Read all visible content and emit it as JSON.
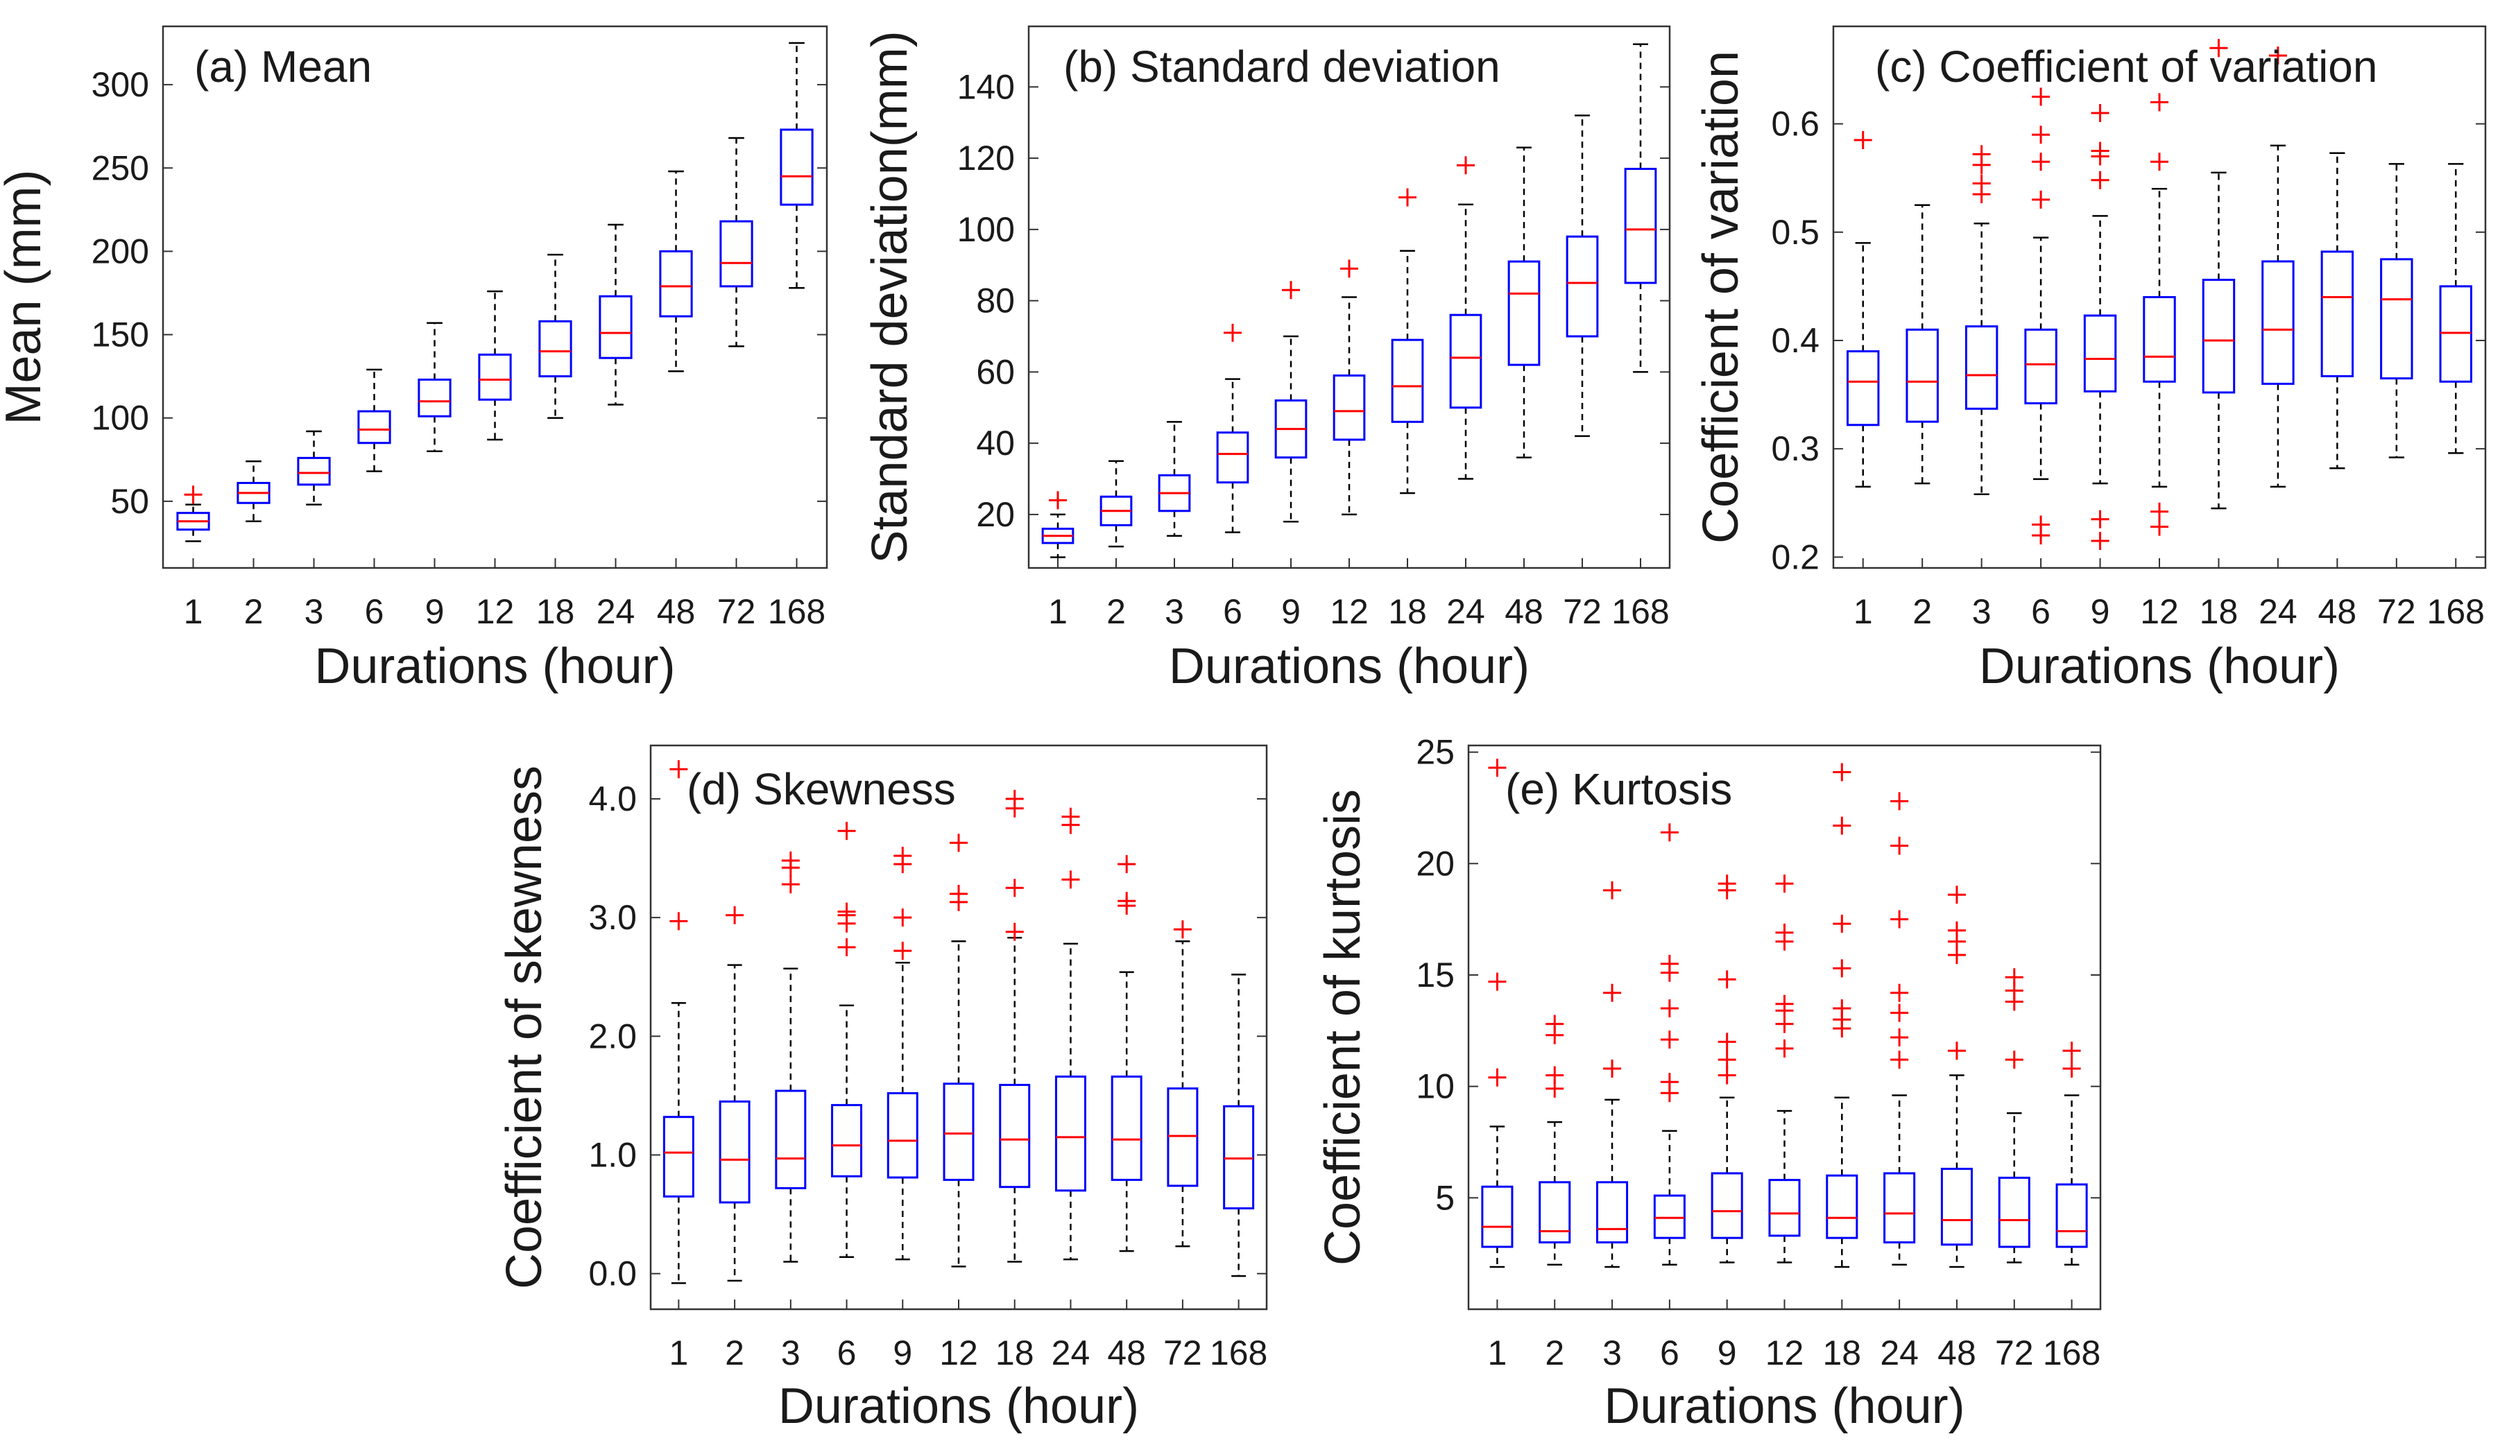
{
  "figure": {
    "caption_hint": "Boxplots of rainfall statistics by duration"
  },
  "colors": {
    "box": "#0000ff",
    "median": "#ff0000",
    "outlier": "#ff0000",
    "whisker": "#000000"
  },
  "chart_data": [
    {
      "id": "a",
      "type": "box",
      "title": "(a) Mean",
      "xlabel": "Durations (hour)",
      "ylabel": "Mean (mm)",
      "categories": [
        "1",
        "2",
        "3",
        "6",
        "9",
        "12",
        "18",
        "24",
        "48",
        "72",
        "168"
      ],
      "ylim": [
        10,
        335
      ],
      "yticks": [
        50,
        100,
        150,
        200,
        250,
        300
      ],
      "ytick_labels": [
        "50",
        "100",
        "150",
        "200",
        "250",
        "300"
      ],
      "boxes": [
        {
          "min": 26,
          "q1": 33,
          "median": 38,
          "q3": 43,
          "max": 48,
          "outliers": [
            54
          ]
        },
        {
          "min": 38,
          "q1": 49,
          "median": 55,
          "q3": 61,
          "max": 74,
          "outliers": []
        },
        {
          "min": 48,
          "q1": 60,
          "median": 67,
          "q3": 76,
          "max": 92,
          "outliers": []
        },
        {
          "min": 68,
          "q1": 85,
          "median": 93,
          "q3": 104,
          "max": 129,
          "outliers": []
        },
        {
          "min": 80,
          "q1": 101,
          "median": 110,
          "q3": 123,
          "max": 157,
          "outliers": []
        },
        {
          "min": 87,
          "q1": 111,
          "median": 123,
          "q3": 138,
          "max": 176,
          "outliers": []
        },
        {
          "min": 100,
          "q1": 125,
          "median": 140,
          "q3": 158,
          "max": 198,
          "outliers": []
        },
        {
          "min": 108,
          "q1": 136,
          "median": 151,
          "q3": 173,
          "max": 216,
          "outliers": []
        },
        {
          "min": 128,
          "q1": 161,
          "median": 179,
          "q3": 200,
          "max": 248,
          "outliers": []
        },
        {
          "min": 143,
          "q1": 179,
          "median": 193,
          "q3": 218,
          "max": 268,
          "outliers": []
        },
        {
          "min": 178,
          "q1": 228,
          "median": 245,
          "q3": 273,
          "max": 325,
          "outliers": []
        }
      ]
    },
    {
      "id": "b",
      "type": "box",
      "title": "(b) Standard deviation",
      "xlabel": "Durations (hour)",
      "ylabel": "Standard deviation(mm)",
      "categories": [
        "1",
        "2",
        "3",
        "6",
        "9",
        "12",
        "18",
        "24",
        "48",
        "72",
        "168"
      ],
      "ylim": [
        5,
        157
      ],
      "yticks": [
        20,
        40,
        60,
        80,
        100,
        120,
        140
      ],
      "ytick_labels": [
        "20",
        "40",
        "60",
        "80",
        "100",
        "120",
        "140"
      ],
      "boxes": [
        {
          "min": 8,
          "q1": 12,
          "median": 14,
          "q3": 16,
          "max": 20,
          "outliers": [
            24
          ]
        },
        {
          "min": 11,
          "q1": 17,
          "median": 21,
          "q3": 25,
          "max": 35,
          "outliers": []
        },
        {
          "min": 14,
          "q1": 21,
          "median": 26,
          "q3": 31,
          "max": 46,
          "outliers": []
        },
        {
          "min": 15,
          "q1": 29,
          "median": 37,
          "q3": 43,
          "max": 58,
          "outliers": [
            71
          ]
        },
        {
          "min": 18,
          "q1": 36,
          "median": 44,
          "q3": 52,
          "max": 70,
          "outliers": [
            83
          ]
        },
        {
          "min": 20,
          "q1": 41,
          "median": 49,
          "q3": 59,
          "max": 81,
          "outliers": [
            89
          ]
        },
        {
          "min": 26,
          "q1": 46,
          "median": 56,
          "q3": 69,
          "max": 94,
          "outliers": [
            109
          ]
        },
        {
          "min": 30,
          "q1": 50,
          "median": 64,
          "q3": 76,
          "max": 107,
          "outliers": [
            118
          ]
        },
        {
          "min": 36,
          "q1": 62,
          "median": 82,
          "q3": 91,
          "max": 123,
          "outliers": []
        },
        {
          "min": 42,
          "q1": 70,
          "median": 85,
          "q3": 98,
          "max": 132,
          "outliers": []
        },
        {
          "min": 60,
          "q1": 85,
          "median": 100,
          "q3": 117,
          "max": 152,
          "outliers": []
        }
      ]
    },
    {
      "id": "c",
      "type": "box",
      "title": "(c) Coefficient of variation",
      "xlabel": "Durations (hour)",
      "ylabel": "Coefficient of variation",
      "categories": [
        "1",
        "2",
        "3",
        "6",
        "9",
        "12",
        "18",
        "24",
        "48",
        "72",
        "168"
      ],
      "ylim": [
        0.19,
        0.69
      ],
      "yticks": [
        0.2,
        0.3,
        0.4,
        0.5,
        0.6
      ],
      "ytick_labels": [
        "0.2",
        "0.3",
        "0.4",
        "0.5",
        "0.6"
      ],
      "boxes": [
        {
          "min": 0.265,
          "q1": 0.322,
          "median": 0.362,
          "q3": 0.39,
          "max": 0.49,
          "outliers": [
            0.585
          ]
        },
        {
          "min": 0.268,
          "q1": 0.325,
          "median": 0.362,
          "q3": 0.41,
          "max": 0.525,
          "outliers": []
        },
        {
          "min": 0.258,
          "q1": 0.337,
          "median": 0.368,
          "q3": 0.413,
          "max": 0.508,
          "outliers": [
            0.535,
            0.545,
            0.562,
            0.572
          ]
        },
        {
          "min": 0.272,
          "q1": 0.342,
          "median": 0.378,
          "q3": 0.41,
          "max": 0.495,
          "outliers": [
            0.53,
            0.565,
            0.59,
            0.625,
            0.23,
            0.22
          ]
        },
        {
          "min": 0.268,
          "q1": 0.353,
          "median": 0.383,
          "q3": 0.423,
          "max": 0.515,
          "outliers": [
            0.548,
            0.57,
            0.575,
            0.61,
            0.235,
            0.215
          ]
        },
        {
          "min": 0.265,
          "q1": 0.362,
          "median": 0.385,
          "q3": 0.44,
          "max": 0.54,
          "outliers": [
            0.565,
            0.62,
            0.242,
            0.228
          ]
        },
        {
          "min": 0.245,
          "q1": 0.352,
          "median": 0.4,
          "q3": 0.456,
          "max": 0.555,
          "outliers": [
            0.67
          ]
        },
        {
          "min": 0.265,
          "q1": 0.36,
          "median": 0.41,
          "q3": 0.473,
          "max": 0.58,
          "outliers": [
            0.663
          ]
        },
        {
          "min": 0.282,
          "q1": 0.367,
          "median": 0.44,
          "q3": 0.482,
          "max": 0.573,
          "outliers": []
        },
        {
          "min": 0.292,
          "q1": 0.365,
          "median": 0.438,
          "q3": 0.475,
          "max": 0.563,
          "outliers": []
        },
        {
          "min": 0.296,
          "q1": 0.362,
          "median": 0.407,
          "q3": 0.45,
          "max": 0.563,
          "outliers": []
        }
      ]
    },
    {
      "id": "d",
      "type": "box",
      "title": "(d) Skewness",
      "xlabel": "Durations (hour)",
      "ylabel": "Coefficient of skewness",
      "categories": [
        "1",
        "2",
        "3",
        "6",
        "9",
        "12",
        "18",
        "24",
        "48",
        "72",
        "168"
      ],
      "ylim": [
        -0.3,
        4.45
      ],
      "yticks": [
        0.0,
        1.0,
        2.0,
        3.0,
        4.0
      ],
      "ytick_labels": [
        "0.0",
        "1.0",
        "2.0",
        "3.0",
        "4.0"
      ],
      "boxes": [
        {
          "min": -0.08,
          "q1": 0.65,
          "median": 1.02,
          "q3": 1.32,
          "max": 2.28,
          "outliers": [
            2.97,
            4.25
          ]
        },
        {
          "min": -0.06,
          "q1": 0.6,
          "median": 0.96,
          "q3": 1.45,
          "max": 2.6,
          "outliers": [
            3.02
          ]
        },
        {
          "min": 0.1,
          "q1": 0.72,
          "median": 0.97,
          "q3": 1.54,
          "max": 2.57,
          "outliers": [
            3.28,
            3.42,
            3.48
          ]
        },
        {
          "min": 0.14,
          "q1": 0.82,
          "median": 1.08,
          "q3": 1.42,
          "max": 2.26,
          "outliers": [
            2.75,
            2.95,
            3.02,
            3.05,
            3.73
          ]
        },
        {
          "min": 0.12,
          "q1": 0.81,
          "median": 1.12,
          "q3": 1.52,
          "max": 2.62,
          "outliers": [
            2.72,
            3.0,
            3.45,
            3.52
          ]
        },
        {
          "min": 0.06,
          "q1": 0.79,
          "median": 1.18,
          "q3": 1.6,
          "max": 2.8,
          "outliers": [
            3.13,
            3.2,
            3.63
          ]
        },
        {
          "min": 0.1,
          "q1": 0.73,
          "median": 1.13,
          "q3": 1.59,
          "max": 2.83,
          "outliers": [
            2.88,
            3.25,
            3.92,
            4.0
          ]
        },
        {
          "min": 0.12,
          "q1": 0.7,
          "median": 1.15,
          "q3": 1.66,
          "max": 2.78,
          "outliers": [
            3.32,
            3.78,
            3.85
          ]
        },
        {
          "min": 0.19,
          "q1": 0.79,
          "median": 1.13,
          "q3": 1.66,
          "max": 2.54,
          "outliers": [
            3.1,
            3.14,
            3.45
          ]
        },
        {
          "min": 0.23,
          "q1": 0.74,
          "median": 1.16,
          "q3": 1.56,
          "max": 2.8,
          "outliers": [
            2.9
          ]
        },
        {
          "min": -0.02,
          "q1": 0.55,
          "median": 0.97,
          "q3": 1.41,
          "max": 2.52,
          "outliers": []
        }
      ]
    },
    {
      "id": "e",
      "type": "box",
      "title": "(e) Kurtosis",
      "xlabel": "Durations (hour)",
      "ylabel": "Coefficient of kurtosis",
      "categories": [
        "1",
        "2",
        "3",
        "6",
        "9",
        "12",
        "18",
        "24",
        "48",
        "72",
        "168"
      ],
      "ylim": [
        0,
        25.3
      ],
      "yticks": [
        5,
        10,
        15,
        20,
        25
      ],
      "ytick_labels": [
        "5",
        "10",
        "15",
        "20",
        "25"
      ],
      "boxes": [
        {
          "min": 1.9,
          "q1": 2.8,
          "median": 3.7,
          "q3": 5.5,
          "max": 8.2,
          "outliers": [
            10.4,
            14.7,
            24.3
          ]
        },
        {
          "min": 2.0,
          "q1": 3.0,
          "median": 3.5,
          "q3": 5.7,
          "max": 8.4,
          "outliers": [
            9.9,
            10.5,
            12.3,
            12.8
          ]
        },
        {
          "min": 1.9,
          "q1": 3.0,
          "median": 3.6,
          "q3": 5.7,
          "max": 9.4,
          "outliers": [
            10.8,
            14.2,
            18.8
          ]
        },
        {
          "min": 2.0,
          "q1": 3.2,
          "median": 4.1,
          "q3": 5.1,
          "max": 8.0,
          "outliers": [
            9.7,
            10.2,
            12.1,
            13.5,
            15.1,
            15.5,
            21.4
          ]
        },
        {
          "min": 2.1,
          "q1": 3.2,
          "median": 4.4,
          "q3": 6.1,
          "max": 9.5,
          "outliers": [
            10.5,
            11.2,
            12.0,
            14.8,
            18.8,
            19.1
          ]
        },
        {
          "min": 2.1,
          "q1": 3.3,
          "median": 4.3,
          "q3": 5.8,
          "max": 8.9,
          "outliers": [
            11.7,
            12.8,
            13.4,
            13.7,
            16.5,
            16.9,
            19.1
          ]
        },
        {
          "min": 1.9,
          "q1": 3.2,
          "median": 4.1,
          "q3": 6.0,
          "max": 9.5,
          "outliers": [
            12.6,
            13.0,
            13.5,
            15.3,
            17.3,
            21.7,
            24.1
          ]
        },
        {
          "min": 2.0,
          "q1": 3.0,
          "median": 4.3,
          "q3": 6.1,
          "max": 9.6,
          "outliers": [
            11.2,
            12.2,
            13.3,
            14.2,
            17.5,
            20.8,
            22.8
          ]
        },
        {
          "min": 1.9,
          "q1": 2.9,
          "median": 4.0,
          "q3": 6.3,
          "max": 10.5,
          "outliers": [
            11.6,
            15.9,
            16.5,
            17.0,
            18.6
          ]
        },
        {
          "min": 2.1,
          "q1": 2.8,
          "median": 4.0,
          "q3": 5.9,
          "max": 8.8,
          "outliers": [
            11.2,
            13.8,
            14.3,
            14.9
          ]
        },
        {
          "min": 2.0,
          "q1": 2.8,
          "median": 3.5,
          "q3": 5.6,
          "max": 9.6,
          "outliers": [
            10.8,
            11.6
          ]
        }
      ]
    }
  ]
}
